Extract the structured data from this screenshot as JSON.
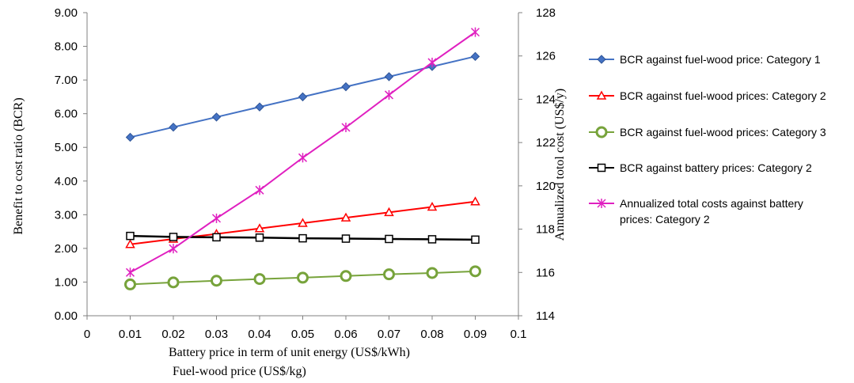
{
  "chart_data": {
    "type": "line",
    "x": [
      0.01,
      0.02,
      0.03,
      0.04,
      0.05,
      0.06,
      0.07,
      0.08,
      0.09
    ],
    "xlim": [
      0,
      0.1
    ],
    "xticks": [
      "0",
      "0.01",
      "0.02",
      "0.03",
      "0.04",
      "0.05",
      "0.06",
      "0.07",
      "0.08",
      "0.09",
      "0.1"
    ],
    "xlabel": "Battery price in term of unit energy  (US$/kWh)",
    "xlabel2": "Fuel-wood price (US$/kg)",
    "ylabel": "Benefit to cost ratio (BCR)",
    "ylim": [
      0,
      9
    ],
    "yticks": [
      "0.00",
      "1.00",
      "2.00",
      "3.00",
      "4.00",
      "5.00",
      "6.00",
      "7.00",
      "8.00",
      "9.00"
    ],
    "y2label": "Annualized totol cost (US$/y)",
    "y2lim": [
      114,
      128
    ],
    "y2ticks": [
      "114",
      "116",
      "118",
      "120",
      "122",
      "124",
      "126",
      "128"
    ],
    "legend_position": "right",
    "series": [
      {
        "name": "BCR against fuel-wood price: Category 1",
        "axis": "left",
        "color": "#4472c4",
        "marker": "diamond",
        "values": [
          5.3,
          5.6,
          5.9,
          6.2,
          6.5,
          6.8,
          7.1,
          7.4,
          7.7
        ]
      },
      {
        "name": "BCR against fuel-wood prices: Category 2",
        "axis": "left",
        "color": "#ff0000",
        "marker": "triangle",
        "values": [
          2.12,
          2.28,
          2.43,
          2.59,
          2.75,
          2.91,
          3.07,
          3.23,
          3.39
        ]
      },
      {
        "name": "BCR against fuel-wood prices: Category 3",
        "axis": "left",
        "color": "#77a33b",
        "marker": "circle",
        "values": [
          0.93,
          0.99,
          1.04,
          1.09,
          1.13,
          1.18,
          1.23,
          1.27,
          1.32
        ]
      },
      {
        "name": "BCR against battery prices: Category 2",
        "axis": "left",
        "color": "#000000",
        "marker": "square",
        "values": [
          2.37,
          2.34,
          2.33,
          2.32,
          2.3,
          2.29,
          2.28,
          2.27,
          2.26
        ]
      },
      {
        "name": "Annualized total costs against battery prices: Category 2",
        "axis": "right",
        "color": "#e020c0",
        "marker": "asterisk",
        "values": [
          116.0,
          117.1,
          118.5,
          119.8,
          121.3,
          122.7,
          124.2,
          125.7,
          127.1
        ]
      }
    ]
  }
}
